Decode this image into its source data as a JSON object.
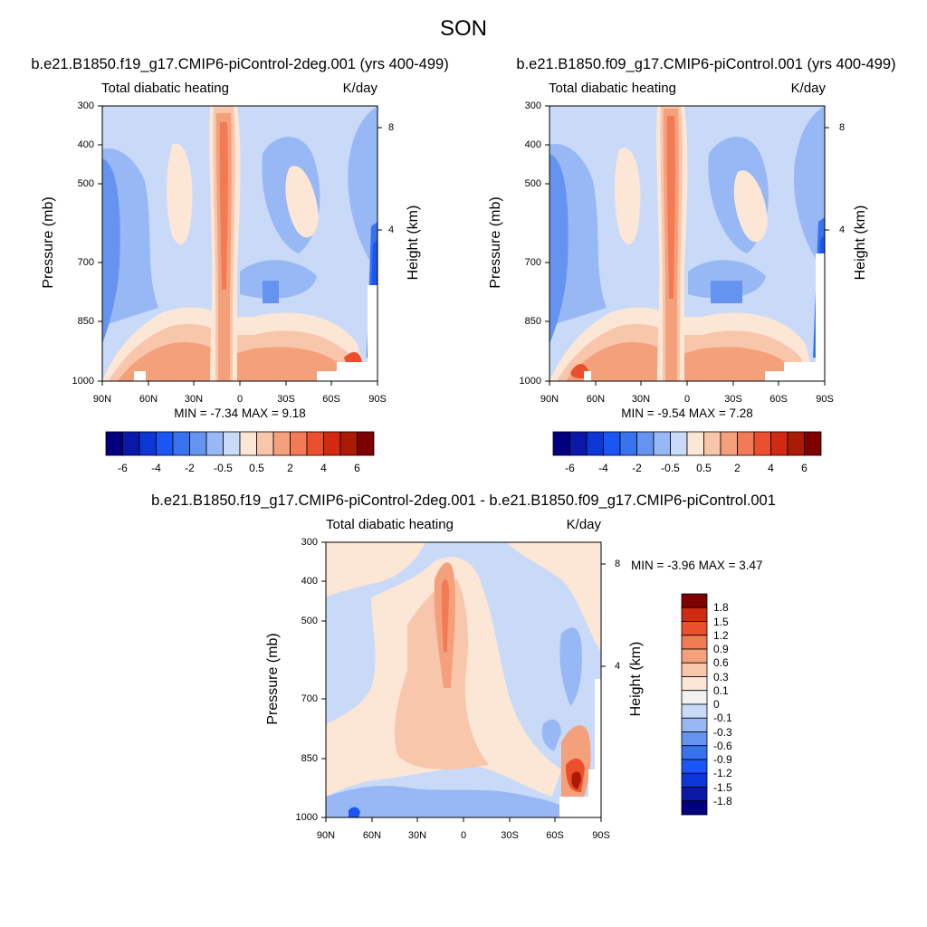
{
  "figure_title": "SON",
  "chart_data": [
    {
      "type": "heatmap",
      "title": "b.e21.B1850.f19_g17.CMIP6-piControl-2deg.001 (yrs 400-499)",
      "left_header": "Total diabatic heating",
      "right_header": "K/day",
      "ylabel": "Pressure (mb)",
      "ylabel_right": "Height (km)",
      "x_ticks": [
        "90N",
        "60N",
        "30N",
        "0",
        "30S",
        "60S",
        "90S"
      ],
      "y_ticks": [
        "300",
        "400",
        "500",
        "700",
        "850",
        "1000"
      ],
      "y_right_ticks": [
        "8",
        "4"
      ],
      "stats": "MIN =  -7.34   MAX =   9.18",
      "min": -7.34,
      "max": 9.18,
      "colorbar_labels": [
        "-6",
        "-4",
        "-2",
        "-0.5",
        "0.5",
        "2",
        "4",
        "6"
      ],
      "contour_levels": [
        -7,
        -6,
        -5,
        -4,
        -3,
        -2,
        -1,
        -0.5,
        0.5,
        1,
        2,
        3,
        4,
        5,
        6,
        7
      ],
      "colorbar_orientation": "horizontal"
    },
    {
      "type": "heatmap",
      "title": "b.e21.B1850.f09_g17.CMIP6-piControl.001 (yrs 400-499)",
      "left_header": "Total diabatic heating",
      "right_header": "K/day",
      "ylabel": "Pressure (mb)",
      "ylabel_right": "Height (km)",
      "x_ticks": [
        "90N",
        "60N",
        "30N",
        "0",
        "30S",
        "60S",
        "90S"
      ],
      "y_ticks": [
        "300",
        "400",
        "500",
        "700",
        "850",
        "1000"
      ],
      "y_right_ticks": [
        "8",
        "4"
      ],
      "stats": "MIN =  -9.54   MAX =   7.28",
      "min": -9.54,
      "max": 7.28,
      "colorbar_labels": [
        "-6",
        "-4",
        "-2",
        "-0.5",
        "0.5",
        "2",
        "4",
        "6"
      ],
      "contour_levels": [
        -7,
        -6,
        -5,
        -4,
        -3,
        -2,
        -1,
        -0.5,
        0.5,
        1,
        2,
        3,
        4,
        5,
        6,
        7
      ],
      "colorbar_orientation": "horizontal"
    },
    {
      "type": "heatmap",
      "title": "b.e21.B1850.f19_g17.CMIP6-piControl-2deg.001 - b.e21.B1850.f09_g17.CMIP6-piControl.001",
      "left_header": "Total diabatic heating",
      "right_header": "K/day",
      "ylabel": "Pressure (mb)",
      "ylabel_right": "Height (km)",
      "x_ticks": [
        "90N",
        "60N",
        "30N",
        "0",
        "30S",
        "60S",
        "90S"
      ],
      "y_ticks": [
        "300",
        "400",
        "500",
        "700",
        "850",
        "1000"
      ],
      "y_right_ticks": [
        "8",
        "4"
      ],
      "stats": "MIN =  -3.96   MAX =   3.47",
      "min": -3.96,
      "max": 3.47,
      "colorbar_labels": [
        "1.8",
        "1.5",
        "1.2",
        "0.9",
        "0.6",
        "0.3",
        "0.1",
        "0",
        "-0.1",
        "-0.3",
        "-0.6",
        "-0.9",
        "-1.2",
        "-1.5",
        "-1.8"
      ],
      "colorbar_orientation": "vertical"
    }
  ],
  "colors": {
    "cb16": [
      "#00007f",
      "#0a18aa",
      "#0d36d6",
      "#1a55f5",
      "#3872ef",
      "#6494f0",
      "#98b8f5",
      "#c8daf7",
      "#fce6d6",
      "#f8c6aa",
      "#f4a07b",
      "#f27b55",
      "#ec4f2c",
      "#d22a12",
      "#aa1a05",
      "#7e0000"
    ],
    "cb16_diff": [
      "#00007f",
      "#0a18aa",
      "#0d36d6",
      "#1a55f5",
      "#3872ef",
      "#6494f0",
      "#98b8f5",
      "#c8daf7",
      "#f2f2f2",
      "#fce6d6",
      "#f8c6aa",
      "#f4a07b",
      "#f27b55",
      "#ec4f2c",
      "#d22a12",
      "#7e0000"
    ]
  }
}
